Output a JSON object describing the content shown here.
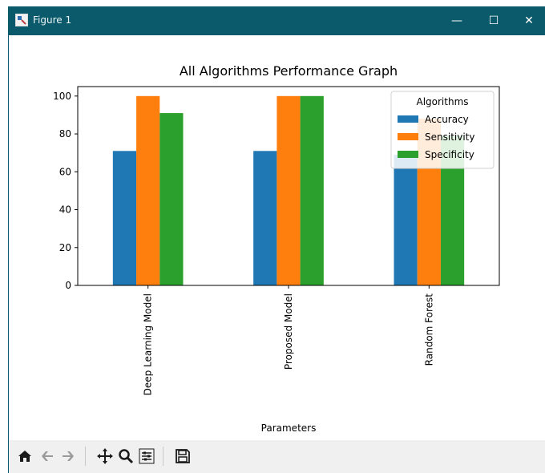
{
  "window": {
    "title": "Figure 1",
    "minimize_glyph": "—",
    "maximize_glyph": "☐",
    "close_glyph": "✕"
  },
  "toolbar": {
    "buttons": [
      {
        "name": "home-icon"
      },
      {
        "name": "back-arrow-icon"
      },
      {
        "name": "forward-arrow-icon"
      },
      {
        "name": "pan-icon"
      },
      {
        "name": "zoom-icon"
      },
      {
        "name": "configure-subplots-icon"
      },
      {
        "name": "save-icon"
      }
    ]
  },
  "chart_data": {
    "type": "bar",
    "title": "All Algorithms Performance Graph",
    "xlabel": "Parameters",
    "ylabel": "",
    "categories": [
      "Deep Learning Model",
      "Proposed Model",
      "Random Forest"
    ],
    "series": [
      {
        "name": "Accuracy",
        "values": [
          71,
          71,
          69
        ],
        "color": "#1f77b4"
      },
      {
        "name": "Sensitivity",
        "values": [
          100,
          100,
          88
        ],
        "color": "#ff7f0e"
      },
      {
        "name": "Specificity",
        "values": [
          91,
          100,
          79
        ],
        "color": "#2ca02c"
      }
    ],
    "ylim": [
      0,
      105
    ],
    "yticks": [
      "0",
      "20",
      "40",
      "60",
      "80",
      "100"
    ],
    "ytick_values": [
      0,
      20,
      40,
      60,
      80,
      100
    ],
    "legend": {
      "title": "Algorithms",
      "placement": "top-right"
    },
    "grid": false
  }
}
